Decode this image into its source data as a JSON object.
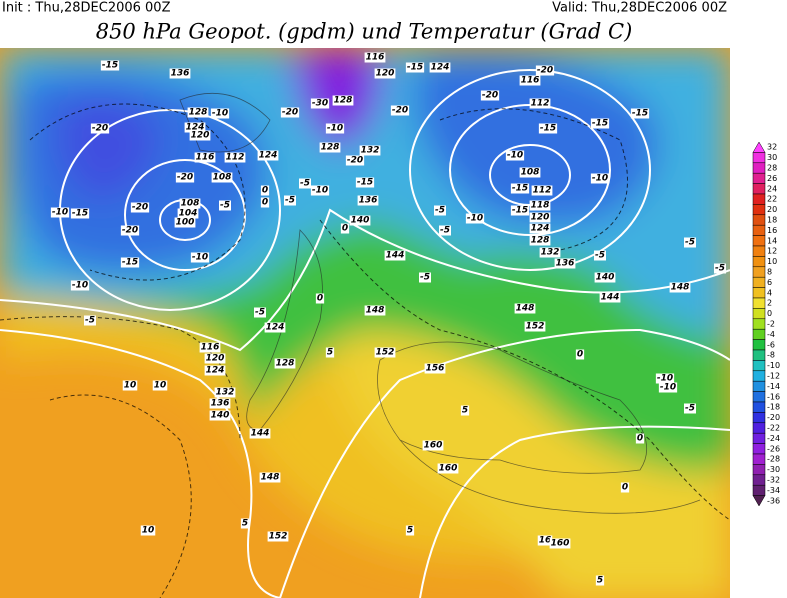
{
  "header": {
    "init": "Init : Thu,28DEC2006 00Z",
    "valid": "Valid: Thu,28DEC2006 00Z",
    "title": "850 hPa Geopot. (gpdm) und Temperatur (Grad C)"
  },
  "colorbar": {
    "ticks": [
      32,
      30,
      28,
      26,
      24,
      22,
      20,
      18,
      16,
      14,
      12,
      10,
      8,
      6,
      4,
      2,
      0,
      -2,
      -4,
      -6,
      -8,
      -10,
      -12,
      -14,
      -16,
      -18,
      -20,
      -22,
      -24,
      -26,
      -28,
      -30,
      -32,
      -34,
      -36
    ],
    "colors": [
      "#ff40ff",
      "#f030e0",
      "#e020c0",
      "#e02090",
      "#e02060",
      "#e02020",
      "#e03010",
      "#e05010",
      "#e86010",
      "#f07010",
      "#f08010",
      "#f09010",
      "#f0a020",
      "#f0b020",
      "#f0c020",
      "#f0e030",
      "#d0e020",
      "#a0e020",
      "#60d020",
      "#20c040",
      "#20c080",
      "#20c0c0",
      "#20b0e0",
      "#2090e0",
      "#2070e0",
      "#2050e0",
      "#3030e0",
      "#5020e0",
      "#7020e0",
      "#9020e0",
      "#a020d0",
      "#9020b0",
      "#702090",
      "#602070",
      "#502050"
    ]
  },
  "map": {
    "contour_labels": [
      "-15",
      "136",
      "116",
      "-15",
      "124",
      "120",
      "-20",
      "116",
      "-20",
      "-30",
      "128",
      "128",
      "-10",
      "-20",
      "-20",
      "112",
      "-15",
      "-15",
      "-15",
      "-20",
      "124",
      "120",
      "-10",
      "128",
      "132",
      "116",
      "112",
      "124",
      "-20",
      "-10",
      "108",
      "-15",
      "112",
      "-10",
      "-20",
      "108",
      "-5",
      "-10",
      "-15",
      "0",
      "-5",
      "108",
      "-5",
      "0",
      "136",
      "-5",
      "118",
      "-20",
      "-10",
      "-15",
      "104",
      "100",
      "-10",
      "-15",
      "120",
      "124",
      "140",
      "0",
      "-20",
      "-5",
      "128",
      "-5",
      "-10",
      "144",
      "132",
      "136",
      "-5",
      "-15",
      "-5",
      "140",
      "148",
      "-5",
      "-10",
      "0",
      "144",
      "148",
      "148",
      "-5",
      "-5",
      "152",
      "124",
      "152",
      "5",
      "0",
      "116",
      "120",
      "124",
      "128",
      "156",
      "10",
      "10",
      "132",
      "136",
      "140",
      "-10",
      "-10",
      "-5",
      "5",
      "0",
      "144",
      "160",
      "160",
      "148",
      "0",
      "5",
      "152",
      "10",
      "16",
      "160",
      "5",
      "5"
    ]
  }
}
